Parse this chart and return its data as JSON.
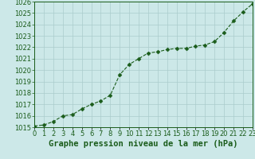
{
  "x": [
    0,
    1,
    2,
    3,
    4,
    5,
    6,
    7,
    8,
    9,
    10,
    11,
    12,
    13,
    14,
    15,
    16,
    17,
    18,
    19,
    20,
    21,
    22,
    23
  ],
  "y": [
    1015.1,
    1015.2,
    1015.5,
    1016.0,
    1016.1,
    1016.6,
    1017.0,
    1017.3,
    1017.8,
    1019.6,
    1020.5,
    1021.0,
    1021.5,
    1021.6,
    1021.8,
    1021.9,
    1021.9,
    1022.1,
    1022.2,
    1022.5,
    1023.3,
    1024.3,
    1025.1,
    1025.8
  ],
  "line_color": "#1a5c1a",
  "marker": "D",
  "marker_size": 2.5,
  "bg_color": "#cce8e8",
  "grid_color": "#aacccc",
  "xlabel": "Graphe pression niveau de la mer (hPa)",
  "ylim_min": 1015,
  "ylim_max": 1026,
  "ytick_step": 1,
  "xtick_labels": [
    "0",
    "1",
    "2",
    "3",
    "4",
    "5",
    "6",
    "7",
    "8",
    "9",
    "10",
    "11",
    "12",
    "13",
    "14",
    "15",
    "16",
    "17",
    "18",
    "19",
    "20",
    "21",
    "22",
    "23"
  ],
  "title_fontsize": 7.5,
  "tick_fontsize": 6,
  "tick_color": "#1a5c1a",
  "axis_color": "#1a5c1a"
}
